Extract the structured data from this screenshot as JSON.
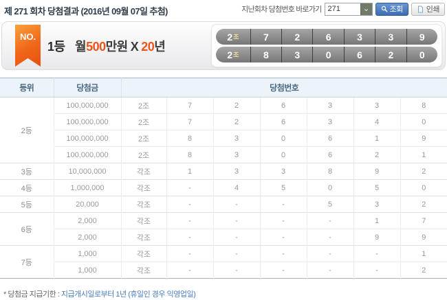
{
  "header": {
    "title": "제 271 회차 당첨결과 (2016년 09월 07일 추첨)",
    "quick_nav_label": "지난회차 당첨번호 바로가기",
    "round_select_value": "271",
    "search_button": "조회",
    "print_button": "인쇄"
  },
  "banner": {
    "ribbon": "NO.",
    "rank": "1등",
    "prize_prefix": "월",
    "prize_amount": "500",
    "prize_suffix": "만원",
    "times": "X",
    "years_amount": "20",
    "years_suffix": "년",
    "winning_numbers": [
      {
        "group": "2",
        "group_suffix": "조",
        "digits": [
          "7",
          "2",
          "6",
          "3",
          "3",
          "9"
        ]
      },
      {
        "group": "2",
        "group_suffix": "조",
        "digits": [
          "8",
          "3",
          "0",
          "6",
          "2",
          "0"
        ]
      }
    ]
  },
  "table": {
    "headers": {
      "rank": "등위",
      "prize": "당첨금",
      "numbers": "당첨번호"
    },
    "groups": [
      {
        "rank": "2등",
        "rows": [
          {
            "prize": "100,000,000",
            "numbers": [
              "2조",
              "7",
              "2",
              "6",
              "3",
              "3",
              "8"
            ]
          },
          {
            "prize": "100,000,000",
            "numbers": [
              "2조",
              "7",
              "2",
              "6",
              "3",
              "4",
              "0"
            ]
          },
          {
            "prize": "100,000,000",
            "numbers": [
              "2조",
              "8",
              "3",
              "0",
              "6",
              "1",
              "9"
            ]
          },
          {
            "prize": "100,000,000",
            "numbers": [
              "2조",
              "8",
              "3",
              "0",
              "6",
              "2",
              "1"
            ]
          }
        ]
      },
      {
        "rank": "3등",
        "rows": [
          {
            "prize": "10,000,000",
            "numbers": [
              "각조",
              "1",
              "3",
              "3",
              "8",
              "9",
              "2"
            ]
          }
        ]
      },
      {
        "rank": "4등",
        "rows": [
          {
            "prize": "1,000,000",
            "numbers": [
              "각조",
              "-",
              "4",
              "5",
              "0",
              "5",
              "0"
            ]
          }
        ]
      },
      {
        "rank": "5등",
        "rows": [
          {
            "prize": "20,000",
            "numbers": [
              "각조",
              "-",
              "-",
              "-",
              "5",
              "3",
              "2"
            ]
          }
        ]
      },
      {
        "rank": "6등",
        "rows": [
          {
            "prize": "2,000",
            "numbers": [
              "각조",
              "-",
              "-",
              "-",
              "-",
              "1",
              "7"
            ]
          },
          {
            "prize": "2,000",
            "numbers": [
              "각조",
              "-",
              "-",
              "-",
              "-",
              "9",
              "9"
            ]
          }
        ]
      },
      {
        "rank": "7등",
        "rows": [
          {
            "prize": "1,000",
            "numbers": [
              "각조",
              "-",
              "-",
              "-",
              "-",
              "-",
              "1"
            ]
          },
          {
            "prize": "1,000",
            "numbers": [
              "각조",
              "-",
              "-",
              "-",
              "-",
              "-",
              "2"
            ]
          }
        ]
      }
    ]
  },
  "footer": {
    "note_label": "* 당첨금 지급기한 :",
    "note_text": "지급개시일로부터 1년 (휴일인 경우 익영업일)"
  },
  "colors": {
    "accent_orange": "#e9561b",
    "search_button_blue": "#3e6cb2",
    "table_header_bg": "#ecf4fa",
    "number_bar_gray": "#8a8a8a",
    "note_link_blue": "#4a7dbf"
  }
}
